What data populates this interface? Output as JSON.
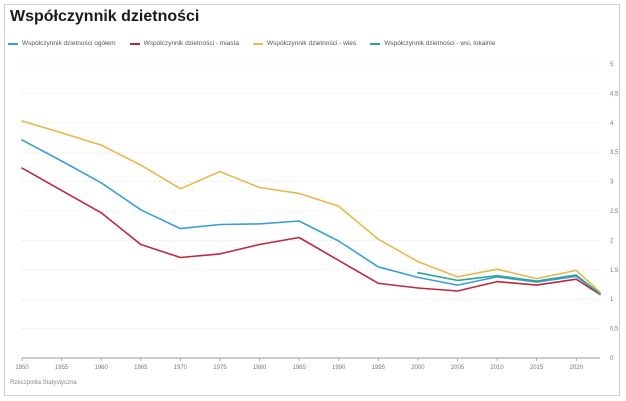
{
  "chart_data": {
    "type": "line",
    "title": "Współczynnik dzietności",
    "x": [
      1950,
      1955,
      1960,
      1965,
      1970,
      1975,
      1980,
      1985,
      1990,
      1995,
      2000,
      2005,
      2010,
      2015,
      2020,
      2023
    ],
    "xticks": [
      "1950",
      "1955",
      "1960",
      "1965",
      "1970",
      "1975",
      "1980",
      "1985",
      "1990",
      "1995",
      "2000",
      "2005",
      "2010",
      "2015",
      "2020"
    ],
    "yticks": [
      "0",
      "0,5",
      "1",
      "1,5",
      "2",
      "2,5",
      "3",
      "3,5",
      "4",
      "4,5",
      "5"
    ],
    "ylim": [
      0,
      5
    ],
    "xlim": [
      1950,
      2023
    ],
    "grid": true,
    "legend_position": "top",
    "series": [
      {
        "name": "Współczynnik dzietności ogółem",
        "color": "#3a9fd8",
        "x": [
          1950,
          1955,
          1960,
          1965,
          1970,
          1975,
          1980,
          1985,
          1990,
          1995,
          2000,
          2005,
          2010,
          2015,
          2020,
          2023
        ],
        "values": [
          3.71,
          3.35,
          2.98,
          2.52,
          2.2,
          2.27,
          2.28,
          2.33,
          1.99,
          1.55,
          1.37,
          1.24,
          1.38,
          1.29,
          1.39,
          1.1
        ]
      },
      {
        "name": "Współczynnik dzietności - miasta",
        "color": "#c0273d",
        "x": [
          1950,
          1955,
          1960,
          1965,
          1970,
          1975,
          1980,
          1985,
          1990,
          1995,
          2000,
          2005,
          2010,
          2015,
          2020,
          2023
        ],
        "values": [
          3.23,
          2.85,
          2.47,
          1.93,
          1.71,
          1.77,
          1.93,
          2.05,
          1.66,
          1.27,
          1.19,
          1.14,
          1.3,
          1.24,
          1.34,
          1.08
        ]
      },
      {
        "name": "Współczynnik dzietności - wieś",
        "color": "#e8b84a",
        "x": [
          1950,
          1955,
          1960,
          1965,
          1970,
          1975,
          1980,
          1985,
          1990,
          1995,
          2000,
          2005,
          2010,
          2015,
          2020,
          2023
        ],
        "values": [
          4.03,
          3.83,
          3.62,
          3.28,
          2.88,
          3.17,
          2.9,
          2.8,
          2.58,
          2.02,
          1.64,
          1.38,
          1.51,
          1.35,
          1.49,
          1.12
        ]
      },
      {
        "name": "Współczynnik dzietności - wsi, lokalnie",
        "color": "#2aa59a",
        "x": [
          2000,
          2005,
          2010,
          2015,
          2020,
          2023
        ],
        "values": [
          1.45,
          1.32,
          1.4,
          1.31,
          1.41,
          1.09
        ]
      }
    ],
    "source": "Rzeczpolita Statystyczna"
  }
}
